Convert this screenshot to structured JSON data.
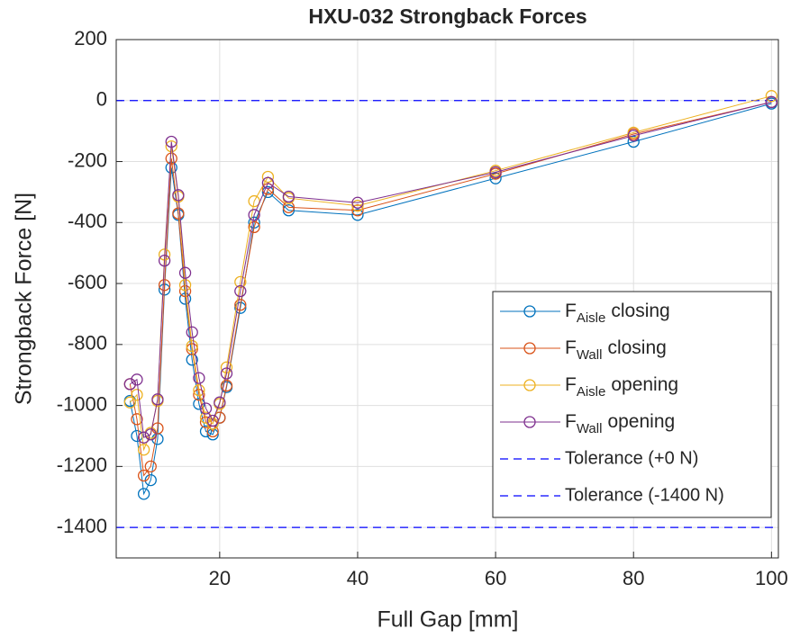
{
  "chart_data": {
    "type": "line",
    "title": "HXU-032 Strongback Forces",
    "xlabel": "Full Gap [mm]",
    "ylabel": "Strongback Force [N]",
    "x": [
      7,
      8,
      9,
      10,
      11,
      12,
      13,
      14,
      15,
      16,
      17,
      18,
      19,
      20,
      21,
      23,
      25,
      27,
      30,
      40,
      60,
      80,
      100
    ],
    "series": [
      {
        "name": [
          "F",
          "Aisle",
          "closing"
        ],
        "color": "#0072bd",
        "values": [
          -985,
          -1100,
          -1290,
          -1245,
          -1110,
          -620,
          -220,
          -375,
          -650,
          -850,
          -995,
          -1085,
          -1095,
          -1040,
          -940,
          -680,
          -400,
          -300,
          -360,
          -375,
          -255,
          -135,
          -10
        ]
      },
      {
        "name": [
          "F",
          "Wall",
          "closing"
        ],
        "color": "#d95319",
        "values": [
          -930,
          -1045,
          -1230,
          -1200,
          -1075,
          -605,
          -190,
          -370,
          -625,
          -815,
          -965,
          -1055,
          -1085,
          -1040,
          -935,
          -670,
          -415,
          -290,
          -350,
          -360,
          -240,
          -110,
          -5
        ]
      },
      {
        "name": [
          "F",
          "Aisle",
          "opening"
        ],
        "color": "#edb120",
        "values": [
          -990,
          -965,
          -1145,
          -1090,
          -985,
          -505,
          -150,
          -315,
          -605,
          -805,
          -950,
          -1040,
          -1060,
          -995,
          -875,
          -595,
          -330,
          -250,
          -320,
          -345,
          -230,
          -105,
          15
        ]
      },
      {
        "name": [
          "F",
          "Wall",
          "opening"
        ],
        "color": "#7e2f8e",
        "values": [
          -930,
          -915,
          -1105,
          -1095,
          -980,
          -525,
          -135,
          -310,
          -565,
          -760,
          -910,
          -1010,
          -1050,
          -990,
          -895,
          -625,
          -375,
          -270,
          -315,
          -335,
          -235,
          -115,
          -5
        ]
      }
    ],
    "reference_lines": [
      {
        "name": "Tolerance (+0 N)",
        "value": 0,
        "color": "#0000ff"
      },
      {
        "name": "Tolerance (-1400 N)",
        "value": -1400,
        "color": "#0000ff"
      }
    ],
    "xlim": [
      5,
      101
    ],
    "ylim": [
      -1500,
      200
    ],
    "xticks": [
      20,
      40,
      60,
      80,
      100
    ],
    "yticks": [
      -1400,
      -1200,
      -1000,
      -800,
      -600,
      -400,
      -200,
      0,
      200
    ],
    "grid": true,
    "legend": "southeast"
  }
}
